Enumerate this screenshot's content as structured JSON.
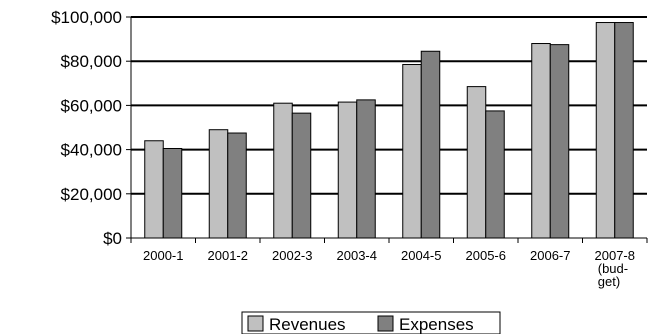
{
  "chart_data": {
    "type": "bar",
    "title": "",
    "xlabel": "",
    "ylabel": "",
    "categories": [
      [
        "2000-1"
      ],
      [
        "2001-2"
      ],
      [
        "2002-3"
      ],
      [
        "2003-4"
      ],
      [
        "2004-5"
      ],
      [
        "2005-6"
      ],
      [
        "2006-7"
      ],
      [
        "2007-8",
        "(bud-",
        "get)"
      ]
    ],
    "series": [
      {
        "name": "Revenues",
        "color": "#c0c0c0",
        "values": [
          44000,
          49000,
          61000,
          61500,
          78500,
          68500,
          88000,
          97500
        ]
      },
      {
        "name": "Expenses",
        "color": "#808080",
        "values": [
          40500,
          47500,
          56500,
          62500,
          84500,
          57500,
          87500,
          97500
        ]
      }
    ],
    "ylim": [
      0,
      100000
    ],
    "yticks": [
      {
        "value": 0,
        "label": "$0"
      },
      {
        "value": 20000,
        "label": "$20,000"
      },
      {
        "value": 40000,
        "label": "$40,000"
      },
      {
        "value": 60000,
        "label": "$60,000"
      },
      {
        "value": 80000,
        "label": "$80,000"
      },
      {
        "value": 100000,
        "label": "$100,000"
      }
    ],
    "grid": true,
    "legend": "bottom"
  }
}
